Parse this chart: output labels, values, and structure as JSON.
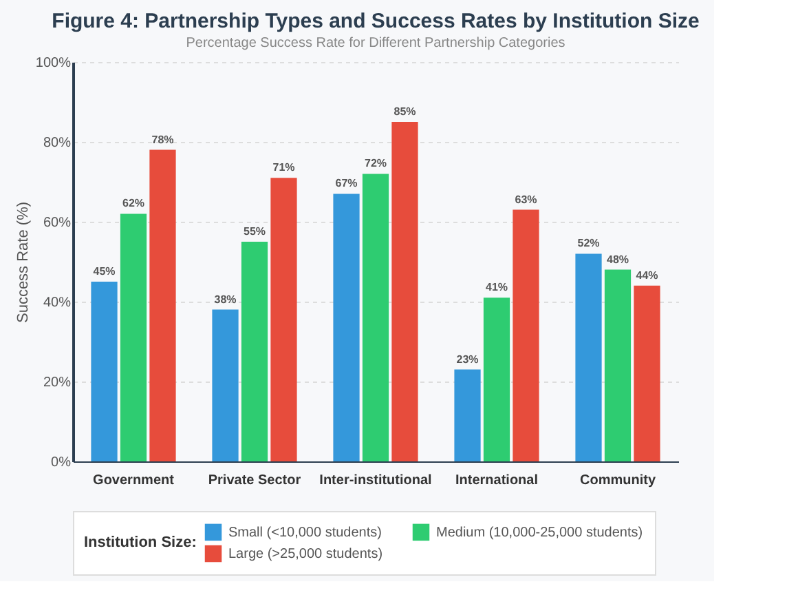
{
  "chart_data": {
    "type": "bar",
    "title": "Figure 4: Partnership Types and Success Rates by Institution Size",
    "subtitle": "Percentage Success Rate for Different Partnership Categories",
    "ylabel": "Success Rate (%)",
    "legend_title": "Institution Size:",
    "categories": [
      "Government",
      "Private Sector",
      "Inter-institutional",
      "International",
      "Community"
    ],
    "series": [
      {
        "name": "Small (<10,000 students)",
        "color": "#3498db",
        "values": [
          45,
          38,
          67,
          23,
          52
        ],
        "value_labels": [
          "45%",
          "38%",
          "67%",
          "23%",
          "52%"
        ]
      },
      {
        "name": "Medium (10,000-25,000 students)",
        "color": "#2ecc71",
        "values": [
          62,
          55,
          72,
          41,
          48
        ],
        "value_labels": [
          "62%",
          "55%",
          "72%",
          "41%",
          "48%"
        ]
      },
      {
        "name": "Large (>25,000 students)",
        "color": "#e74c3c",
        "values": [
          78,
          71,
          85,
          63,
          44
        ],
        "value_labels": [
          "78%",
          "71%",
          "85%",
          "63%",
          "44%"
        ]
      }
    ],
    "ylim": [
      0,
      100
    ],
    "yticks": [
      {
        "value": 0,
        "label": "0%"
      },
      {
        "value": 20,
        "label": "20%"
      },
      {
        "value": 40,
        "label": "40%"
      },
      {
        "value": 60,
        "label": "60%"
      },
      {
        "value": 80,
        "label": "80%"
      },
      {
        "value": 100,
        "label": "100%"
      }
    ],
    "grid": "y",
    "legend": "bottom"
  }
}
